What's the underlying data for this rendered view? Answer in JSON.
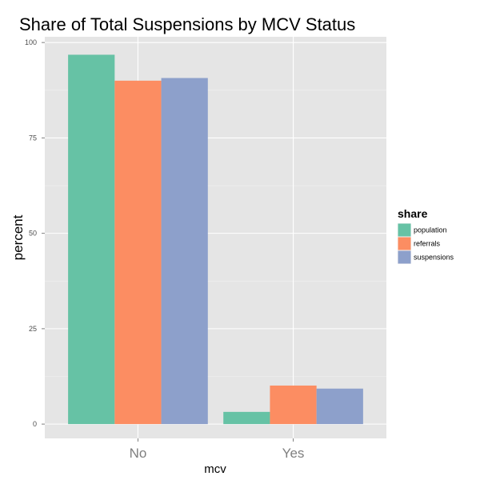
{
  "chart_data": {
    "type": "bar",
    "title": "Share of Total Suspensions by MCV Status",
    "xlabel": "mcv",
    "ylabel": "percent",
    "categories": [
      "No",
      "Yes"
    ],
    "series": [
      {
        "name": "population",
        "values": [
          96.8,
          3.2
        ],
        "color": "#66c2a5"
      },
      {
        "name": "referrals",
        "values": [
          90.0,
          10.1
        ],
        "color": "#fc8d62"
      },
      {
        "name": "suspensions",
        "values": [
          90.7,
          9.3
        ],
        "color": "#8da0cb"
      }
    ],
    "ylim": [
      -3.75,
      101.5
    ],
    "yticks": [
      "0",
      "25",
      "50",
      "75",
      "100"
    ],
    "grid": true,
    "legend": {
      "title": "share",
      "position": "right"
    },
    "panel_color": "#e5e5e5",
    "grid_color": "#ffffff"
  }
}
